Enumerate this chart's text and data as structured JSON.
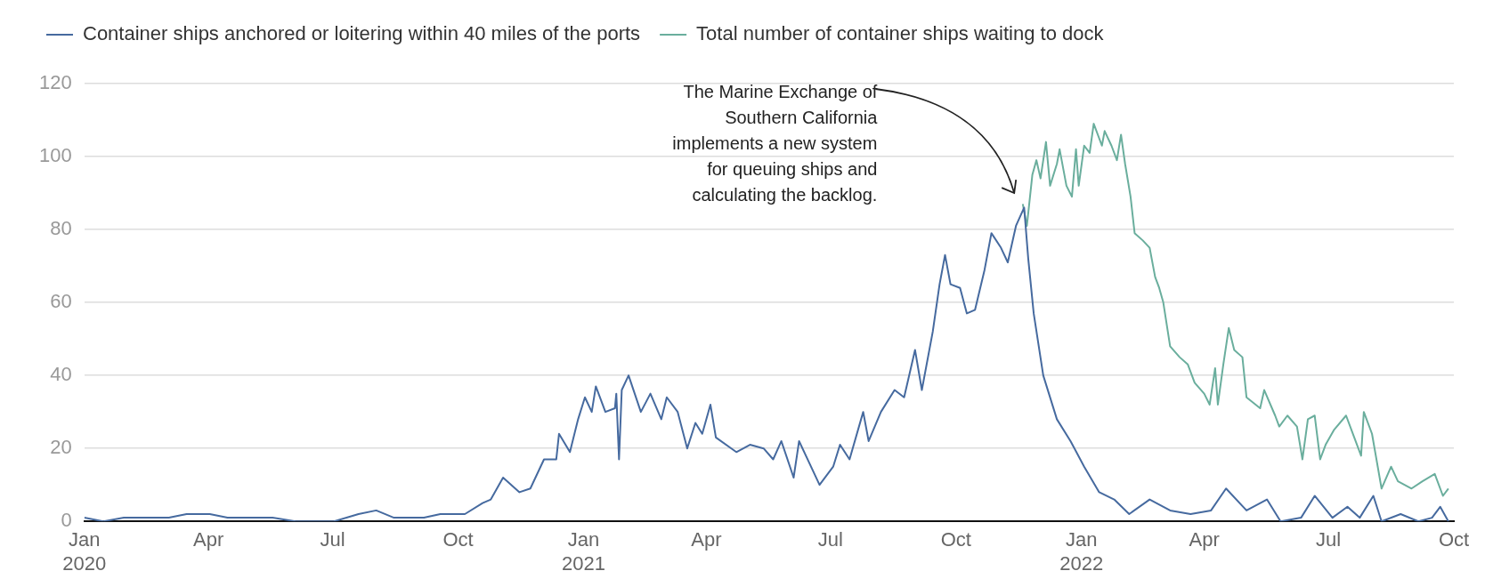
{
  "chart_data": {
    "type": "line",
    "legend": "top left",
    "grid": "y",
    "marker": "none",
    "line_style": "solid",
    "xlim": [
      "2020-01-01",
      "2022-10-01"
    ],
    "xticks": [
      {
        "value": "2020-01-01",
        "label": "Jan\n2020"
      },
      {
        "value": "2020-04-01",
        "label": "Apr"
      },
      {
        "value": "2020-07-01",
        "label": "Jul"
      },
      {
        "value": "2020-10-01",
        "label": "Oct"
      },
      {
        "value": "2021-01-01",
        "label": "Jan\n2021"
      },
      {
        "value": "2021-04-01",
        "label": "Apr"
      },
      {
        "value": "2021-07-01",
        "label": "Jul"
      },
      {
        "value": "2021-10-01",
        "label": "Oct"
      },
      {
        "value": "2022-01-01",
        "label": "Jan\n2022"
      },
      {
        "value": "2022-04-01",
        "label": "Apr"
      },
      {
        "value": "2022-07-01",
        "label": "Jul"
      },
      {
        "value": "2022-10-01",
        "label": "Oct"
      }
    ],
    "ylim": [
      0,
      120
    ],
    "yticks": [
      0,
      20,
      40,
      60,
      80,
      100,
      120
    ],
    "annotations": [
      "The Marine Exchange of\nSouthern California\nimplements a new system\nfor queuing ships and\ncalculating the backlog."
    ],
    "series": [
      {
        "name": "Container ships anchored or loitering within 40 miles of the ports",
        "color": "#466a9f",
        "x": [
          "2020-01-01",
          "2020-01-15",
          "2020-01-30",
          "2020-03-03",
          "2020-03-16",
          "2020-04-02",
          "2020-04-15",
          "2020-05-18",
          "2020-06-04",
          "2020-07-02",
          "2020-07-20",
          "2020-08-02",
          "2020-08-15",
          "2020-09-06",
          "2020-09-18",
          "2020-10-06",
          "2020-10-19",
          "2020-10-25",
          "2020-11-03",
          "2020-11-15",
          "2020-11-23",
          "2020-12-03",
          "2020-12-12",
          "2020-12-14",
          "2020-12-22",
          "2020-12-28",
          "2021-01-02",
          "2021-01-07",
          "2021-01-10",
          "2021-01-17",
          "2021-01-24",
          "2021-01-25",
          "2021-01-27",
          "2021-01-29",
          "2021-02-03",
          "2021-02-12",
          "2021-02-19",
          "2021-02-27",
          "2021-03-03",
          "2021-03-11",
          "2021-03-18",
          "2021-03-24",
          "2021-03-29",
          "2021-04-04",
          "2021-04-08",
          "2021-04-23",
          "2021-05-03",
          "2021-05-13",
          "2021-05-20",
          "2021-05-26",
          "2021-06-04",
          "2021-06-08",
          "2021-06-23",
          "2021-07-03",
          "2021-07-08",
          "2021-07-15",
          "2021-07-25",
          "2021-07-29",
          "2021-08-07",
          "2021-08-17",
          "2021-08-24",
          "2021-09-01",
          "2021-09-06",
          "2021-09-14",
          "2021-09-19",
          "2021-09-23",
          "2021-09-27",
          "2021-10-04",
          "2021-10-09",
          "2021-10-15",
          "2021-10-22",
          "2021-10-27",
          "2021-11-03",
          "2021-11-08",
          "2021-11-14",
          "2021-11-20",
          "2021-11-23",
          "2021-11-27",
          "2021-12-04",
          "2021-12-14",
          "2021-12-24",
          "2022-01-03",
          "2022-01-14",
          "2022-01-25",
          "2022-02-05",
          "2022-02-20",
          "2022-03-07",
          "2022-03-22",
          "2022-04-06",
          "2022-04-17",
          "2022-05-02",
          "2022-05-17",
          "2022-05-27",
          "2022-06-11",
          "2022-06-21",
          "2022-07-04",
          "2022-07-15",
          "2022-07-24",
          "2022-08-03",
          "2022-08-09",
          "2022-08-23",
          "2022-09-05",
          "2022-09-15",
          "2022-09-21",
          "2022-09-27"
        ],
        "values": [
          1,
          0,
          1,
          1,
          2,
          2,
          1,
          1,
          0,
          0,
          2,
          3,
          1,
          1,
          2,
          2,
          5,
          6,
          12,
          8,
          9,
          17,
          17,
          24,
          19,
          28,
          34,
          30,
          37,
          30,
          31,
          35,
          17,
          36,
          40,
          30,
          35,
          28,
          34,
          30,
          20,
          27,
          24,
          32,
          23,
          19,
          21,
          20,
          17,
          22,
          12,
          22,
          10,
          15,
          21,
          17,
          30,
          22,
          30,
          36,
          34,
          47,
          36,
          52,
          65,
          73,
          65,
          64,
          57,
          58,
          69,
          79,
          75,
          71,
          81,
          86,
          72,
          57,
          40,
          28,
          22,
          15,
          8,
          6,
          2,
          6,
          3,
          2,
          3,
          9,
          3,
          6,
          0,
          1,
          7,
          1,
          4,
          1,
          7,
          0,
          2,
          0,
          1,
          4,
          0
        ]
      },
      {
        "name": "Total number of container ships waiting to dock",
        "color": "#6aae9d",
        "x": [
          "2021-11-19",
          "2021-11-22",
          "2021-11-26",
          "2021-11-29",
          "2021-12-02",
          "2021-12-06",
          "2021-12-09",
          "2021-12-14",
          "2021-12-16",
          "2021-12-21",
          "2021-12-25",
          "2021-12-28",
          "2021-12-30",
          "2022-01-03",
          "2022-01-07",
          "2022-01-10",
          "2022-01-16",
          "2022-01-18",
          "2022-01-23",
          "2022-01-27",
          "2022-01-30",
          "2022-02-02",
          "2022-02-06",
          "2022-02-09",
          "2022-02-15",
          "2022-02-20",
          "2022-02-24",
          "2022-02-27",
          "2022-03-02",
          "2022-03-07",
          "2022-03-14",
          "2022-03-20",
          "2022-03-25",
          "2022-04-01",
          "2022-04-05",
          "2022-04-09",
          "2022-04-11",
          "2022-04-15",
          "2022-04-19",
          "2022-04-23",
          "2022-04-29",
          "2022-05-02",
          "2022-05-12",
          "2022-05-15",
          "2022-05-23",
          "2022-05-26",
          "2022-06-01",
          "2022-06-08",
          "2022-06-12",
          "2022-06-16",
          "2022-06-21",
          "2022-06-25",
          "2022-06-29",
          "2022-07-05",
          "2022-07-14",
          "2022-07-20",
          "2022-07-25",
          "2022-07-27",
          "2022-08-02",
          "2022-08-09",
          "2022-08-16",
          "2022-08-21",
          "2022-08-31",
          "2022-09-08",
          "2022-09-17",
          "2022-09-23",
          "2022-09-27"
        ],
        "values": [
          87,
          81,
          95,
          99,
          94,
          104,
          92,
          98,
          102,
          92,
          89,
          102,
          92,
          103,
          101,
          109,
          103,
          107,
          103,
          99,
          106,
          98,
          89,
          79,
          77,
          75,
          67,
          64,
          60,
          48,
          45,
          43,
          38,
          35,
          32,
          42,
          32,
          43,
          53,
          47,
          45,
          34,
          31,
          36,
          29,
          26,
          29,
          26,
          17,
          28,
          29,
          17,
          21,
          25,
          29,
          23,
          18,
          30,
          24,
          9,
          15,
          11,
          9,
          11,
          13,
          7,
          9
        ]
      }
    ]
  }
}
